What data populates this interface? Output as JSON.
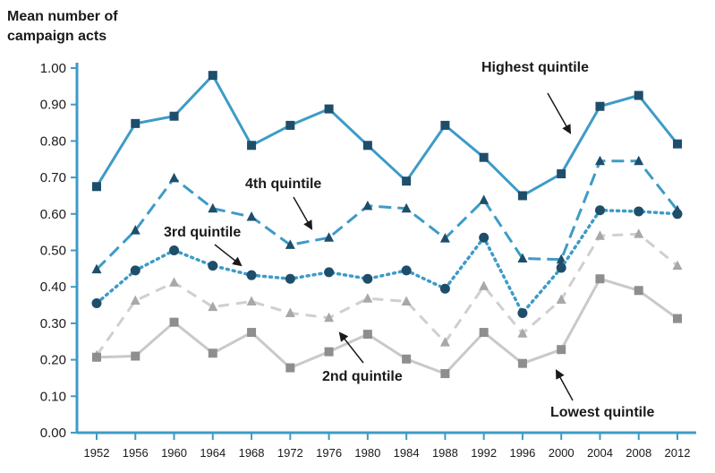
{
  "chart_data": {
    "type": "line",
    "title": "",
    "ylabel_line1": "Mean number of",
    "ylabel_line2": "campaign acts",
    "xlabel": "",
    "ylim": [
      0,
      1.0
    ],
    "yticks": [
      "0.00",
      "0.10",
      "0.20",
      "0.30",
      "0.40",
      "0.50",
      "0.60",
      "0.70",
      "0.80",
      "0.90",
      "1.00"
    ],
    "categories": [
      "1952",
      "1956",
      "1960",
      "1964",
      "1968",
      "1972",
      "1976",
      "1980",
      "1984",
      "1988",
      "1992",
      "1996",
      "2000",
      "2004",
      "2008",
      "2012"
    ],
    "series": [
      {
        "name": "Highest quintile",
        "color": "#3d9bc7",
        "marker": "square",
        "dash": "solid",
        "values": [
          0.675,
          0.848,
          0.868,
          0.98,
          0.788,
          0.843,
          0.888,
          0.788,
          0.69,
          0.843,
          0.755,
          0.65,
          0.71,
          0.895,
          0.925,
          0.792
        ]
      },
      {
        "name": "4th quintile",
        "color": "#3d9bc7",
        "marker": "triangle",
        "dash": "long",
        "values": [
          0.448,
          0.555,
          0.698,
          0.615,
          0.592,
          0.515,
          0.535,
          0.622,
          0.615,
          0.533,
          0.638,
          0.478,
          0.475,
          0.745,
          0.745,
          0.61
        ]
      },
      {
        "name": "3rd quintile",
        "color": "#3d9bc7",
        "marker": "circle",
        "dash": "dotted",
        "values": [
          0.355,
          0.445,
          0.5,
          0.458,
          0.432,
          0.422,
          0.44,
          0.422,
          0.445,
          0.395,
          0.535,
          0.328,
          0.452,
          0.61,
          0.607,
          0.6
        ]
      },
      {
        "name": "2nd quintile",
        "color": "#cfcfcf",
        "marker": "triangle",
        "dash": "dashed",
        "values": [
          0.212,
          0.362,
          0.412,
          0.345,
          0.36,
          0.328,
          0.315,
          0.368,
          0.36,
          0.248,
          0.402,
          0.272,
          0.365,
          0.54,
          0.545,
          0.458
        ]
      },
      {
        "name": "Lowest quintile",
        "color": "#c9c9c9",
        "marker": "square",
        "dash": "solid",
        "values": [
          0.207,
          0.21,
          0.303,
          0.218,
          0.275,
          0.178,
          0.222,
          0.27,
          0.202,
          0.162,
          0.275,
          0.19,
          0.228,
          0.422,
          0.39,
          0.313
        ]
      }
    ],
    "annotations": [
      {
        "text": "Highest quintile",
        "points_to": "Highest quintile"
      },
      {
        "text": "4th quintile",
        "points_to": "4th quintile"
      },
      {
        "text": "3rd quintile",
        "points_to": "3rd quintile"
      },
      {
        "text": "2nd quintile",
        "points_to": "2nd quintile"
      },
      {
        "text": "Lowest quintile",
        "points_to": "Lowest quintile"
      }
    ],
    "grid": false,
    "legend": "none"
  }
}
